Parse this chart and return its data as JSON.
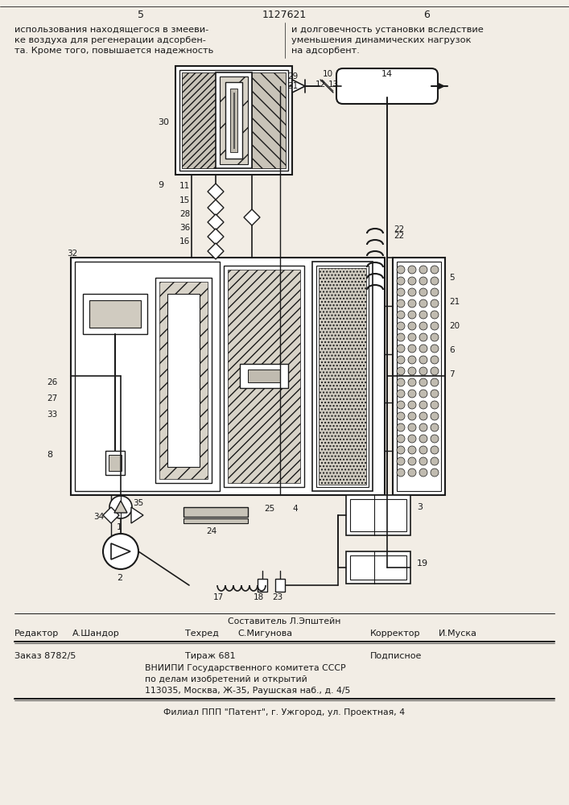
{
  "page_number_left": "5",
  "patent_number": "1127621",
  "page_number_right": "6",
  "text_left_1": "использования находящегося в змееви-",
  "text_left_2": "ке воздуха для регенерации адсорбен-",
  "text_left_3": "та. Кроме того, повышается надежность",
  "text_right_1": "и долговечность установки вследствие",
  "text_right_2": "уменьшения динамических нагрузок",
  "text_right_3": "на адсорбент.",
  "editor_label": "Редактор",
  "editor_name": "А.Шандор",
  "tehred_label": "Техред",
  "tehred_name": "С.Мигунова",
  "korrektor_label": "Корректор",
  "korrektor_name": "И.Муска",
  "order_label": "Заказ 8782/5",
  "tirazh_label": "Тираж 681",
  "podpisnoe_label": "Подписное",
  "org1": "ВНИИПИ Государственного комитета СССР",
  "org2": "по делам изобретений и открытий",
  "org3": "113035, Москва, Ж-35, Раушская наб., д. 4/5",
  "filial": "Филиал ППП \"Патент\", г. Ужгород, ул. Проектная, 4",
  "bg": "#f2ede5",
  "lc": "#1a1a1a",
  "gray1": "#b0a898",
  "gray2": "#d0cbc0",
  "white": "#ffffff"
}
